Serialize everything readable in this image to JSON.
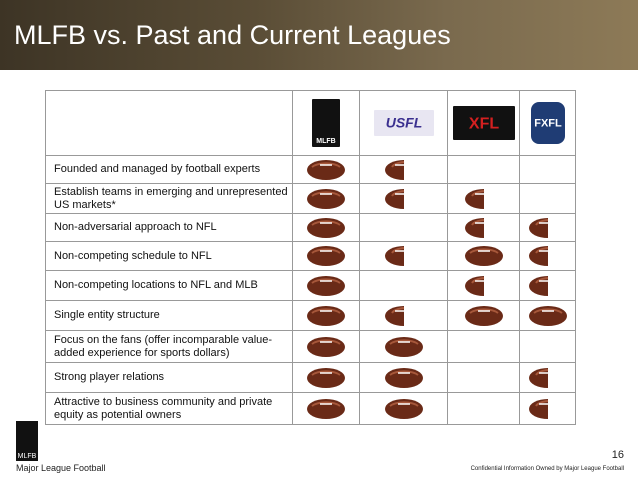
{
  "header": {
    "title": "MLFB vs. Past and Current Leagues"
  },
  "table": {
    "columns": [
      "MLFB",
      "USFL",
      "XFL",
      "FXFL"
    ],
    "rows": [
      {
        "label": "Founded and managed by football experts",
        "cells": [
          1,
          0.5,
          0,
          0
        ]
      },
      {
        "label": "Establish teams in emerging and unrepresented US markets*",
        "cells": [
          1,
          0.5,
          0.5,
          0
        ]
      },
      {
        "label": "Non-adversarial approach to NFL",
        "cells": [
          1,
          0,
          0.5,
          0.5
        ]
      },
      {
        "label": "Non-competing schedule to NFL",
        "cells": [
          1,
          0.5,
          1,
          0.5
        ]
      },
      {
        "label": "Non-competing locations to NFL and MLB",
        "cells": [
          1,
          0,
          0.5,
          0.5
        ]
      },
      {
        "label": "Single entity structure",
        "cells": [
          1,
          0.5,
          1,
          1
        ]
      },
      {
        "label": "Focus on the fans (offer incomparable value-added experience for sports dollars)",
        "cells": [
          1,
          1,
          0,
          0
        ]
      },
      {
        "label": "Strong player relations",
        "cells": [
          1,
          1,
          0,
          0.5
        ]
      },
      {
        "label": "Attractive to business community and private equity as potential owners",
        "cells": [
          1,
          1,
          0,
          0.5
        ]
      }
    ]
  },
  "footer": {
    "logo": "MLFB",
    "left": "Major League Football",
    "page": "16",
    "confidential": "Confidential Information Owned by Major League Football"
  }
}
